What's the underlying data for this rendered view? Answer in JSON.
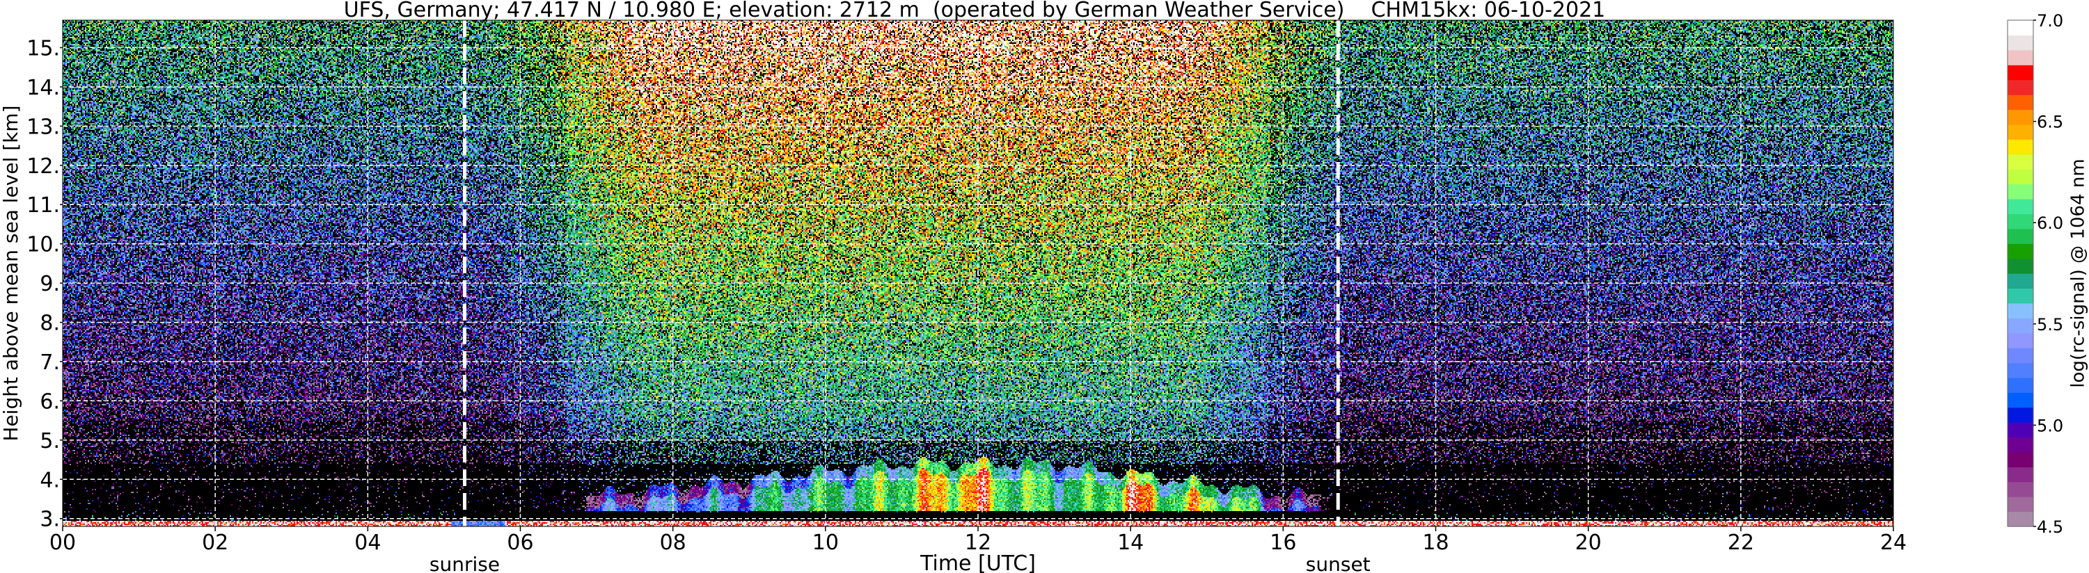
{
  "chart_data": {
    "type": "heatmap",
    "title": "UFS, Germany; 47.417 N / 10.980 E; elevation: 2712 m  (operated by German Weather Service)    CHM15kx: 06-10-2021",
    "xlabel": "Time [UTC]",
    "ylabel": "Height above mean sea level [km]",
    "xlim": [
      0,
      24
    ],
    "ylim": [
      2.8,
      15.7
    ],
    "x_ticks": [
      "00",
      "02",
      "04",
      "06",
      "08",
      "10",
      "12",
      "14",
      "16",
      "18",
      "20",
      "22",
      "24"
    ],
    "x_tick_values": [
      0,
      2,
      4,
      6,
      8,
      10,
      12,
      14,
      16,
      18,
      20,
      22,
      24
    ],
    "y_ticks": [
      "3.",
      "4.",
      "5.",
      "6.",
      "7.",
      "8.",
      "9.",
      "10.",
      "11.",
      "12.",
      "13.",
      "14.",
      "15."
    ],
    "y_tick_values": [
      3,
      4,
      5,
      6,
      7,
      8,
      9,
      10,
      11,
      12,
      13,
      14,
      15
    ],
    "grid": true,
    "annotations": [
      {
        "label": "sunrise",
        "time_utc": 5.27
      },
      {
        "label": "sunset",
        "time_utc": 16.72
      }
    ],
    "colorbar": {
      "label": "log(rc-signal) @ 1064 nm",
      "range": [
        4.5,
        7.0
      ],
      "ticks": [
        "4.5",
        "5.0",
        "5.5",
        "6.0",
        "6.5",
        "7.0"
      ],
      "tick_values": [
        4.5,
        5.0,
        5.5,
        6.0,
        6.5,
        7.0
      ],
      "colors": [
        "#a88aa8",
        "#a06a9c",
        "#964a94",
        "#8a2a8a",
        "#780070",
        "#700094",
        "#5000b4",
        "#0018e0",
        "#0060ff",
        "#3070ff",
        "#5080ff",
        "#7088ff",
        "#9098ff",
        "#88a8ff",
        "#88c0ff",
        "#30c8a8",
        "#20a890",
        "#109030",
        "#18a000",
        "#20c050",
        "#30d878",
        "#40e898",
        "#88ff78",
        "#c0ff40",
        "#d8ff40",
        "#ffe800",
        "#ffb000",
        "#ff9800",
        "#ff6000",
        "#f02828",
        "#ff0000",
        "#f0c4c4",
        "#ece4e4",
        "#ffffff"
      ]
    },
    "below_range_color": "#000000"
  }
}
